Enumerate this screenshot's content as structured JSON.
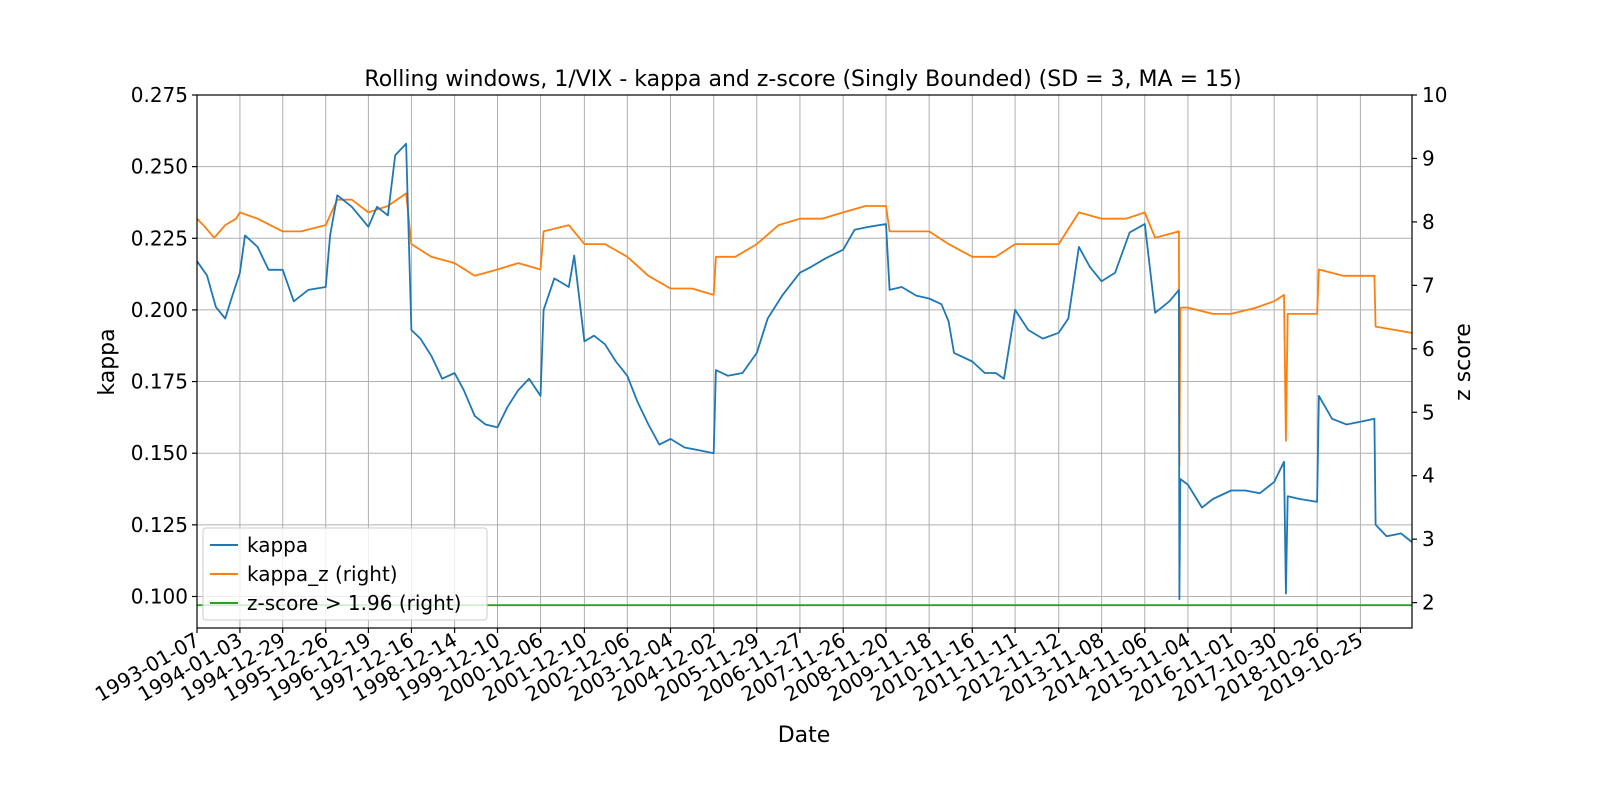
{
  "chart_data": {
    "type": "line",
    "title": "Rolling windows, 1/VIX - kappa and z-score (Singly Bounded) (SD = 3, MA = 15)",
    "xlabel": "Date",
    "ylabel": "kappa",
    "y2label": "z score",
    "xlim": [
      "1993-01-07",
      "2021-01-01"
    ],
    "ylim": [
      0.089,
      0.275
    ],
    "y2lim": [
      1.6,
      10.0
    ],
    "x_tick_labels": [
      "1993-01-07",
      "1994-01-03",
      "1994-12-29",
      "1995-12-26",
      "1996-12-19",
      "1997-12-16",
      "1998-12-14",
      "1999-12-10",
      "2000-12-06",
      "2001-12-10",
      "2002-12-06",
      "2003-12-04",
      "2004-12-02",
      "2005-11-29",
      "2006-11-27",
      "2007-11-26",
      "2008-11-20",
      "2009-11-18",
      "2010-11-16",
      "2011-11-11",
      "2012-11-12",
      "2013-11-08",
      "2014-11-06",
      "2015-11-04",
      "2016-11-01",
      "2017-10-30",
      "2018-10-26",
      "2019-10-25"
    ],
    "y_ticks": [
      "0.100",
      "0.125",
      "0.150",
      "0.175",
      "0.200",
      "0.225",
      "0.250",
      "0.275"
    ],
    "y2_ticks": [
      "2",
      "3",
      "4",
      "5",
      "6",
      "7",
      "8",
      "9",
      "10"
    ],
    "grid": true,
    "legend_position": "lower-left",
    "series": [
      {
        "name": "kappa",
        "axis": "left",
        "color": "#1f77b4",
        "points": [
          [
            "1993-01-07",
            0.217
          ],
          [
            "1993-04-01",
            0.212
          ],
          [
            "1993-06-15",
            0.201
          ],
          [
            "1993-09-01",
            0.197
          ],
          [
            "1993-11-01",
            0.205
          ],
          [
            "1994-01-03",
            0.213
          ],
          [
            "1994-02-15",
            0.226
          ],
          [
            "1994-06-01",
            0.222
          ],
          [
            "1994-09-01",
            0.214
          ],
          [
            "1994-12-29",
            0.214
          ],
          [
            "1995-04-01",
            0.203
          ],
          [
            "1995-08-01",
            0.207
          ],
          [
            "1995-12-26",
            0.208
          ],
          [
            "1996-02-01",
            0.226
          ],
          [
            "1996-04-01",
            0.24
          ],
          [
            "1996-08-01",
            0.236
          ],
          [
            "1996-12-19",
            0.229
          ],
          [
            "1997-03-01",
            0.236
          ],
          [
            "1997-06-01",
            0.233
          ],
          [
            "1997-08-01",
            0.254
          ],
          [
            "1997-11-01",
            0.258
          ],
          [
            "1997-12-16",
            0.193
          ],
          [
            "1998-03-01",
            0.19
          ],
          [
            "1998-06-01",
            0.184
          ],
          [
            "1998-09-01",
            0.176
          ],
          [
            "1998-12-14",
            0.178
          ],
          [
            "1999-03-01",
            0.172
          ],
          [
            "1999-06-01",
            0.163
          ],
          [
            "1999-09-01",
            0.16
          ],
          [
            "1999-12-10",
            0.159
          ],
          [
            "2000-03-01",
            0.166
          ],
          [
            "2000-06-01",
            0.172
          ],
          [
            "2000-09-01",
            0.176
          ],
          [
            "2000-12-06",
            0.17
          ],
          [
            "2001-01-01",
            0.2
          ],
          [
            "2001-04-01",
            0.211
          ],
          [
            "2001-08-01",
            0.208
          ],
          [
            "2001-09-15",
            0.219
          ],
          [
            "2001-12-10",
            0.189
          ],
          [
            "2002-03-01",
            0.191
          ],
          [
            "2002-06-01",
            0.188
          ],
          [
            "2002-09-01",
            0.182
          ],
          [
            "2002-12-06",
            0.177
          ],
          [
            "2003-03-01",
            0.168
          ],
          [
            "2003-06-01",
            0.16
          ],
          [
            "2003-09-01",
            0.153
          ],
          [
            "2003-12-04",
            0.155
          ],
          [
            "2004-04-01",
            0.152
          ],
          [
            "2004-08-01",
            0.151
          ],
          [
            "2004-12-02",
            0.15
          ],
          [
            "2004-12-20",
            0.179
          ],
          [
            "2005-04-01",
            0.177
          ],
          [
            "2005-08-01",
            0.178
          ],
          [
            "2005-11-29",
            0.185
          ],
          [
            "2006-03-01",
            0.197
          ],
          [
            "2006-07-01",
            0.205
          ],
          [
            "2006-11-27",
            0.213
          ],
          [
            "2007-03-01",
            0.215
          ],
          [
            "2007-07-01",
            0.218
          ],
          [
            "2007-11-26",
            0.221
          ],
          [
            "2008-03-01",
            0.228
          ],
          [
            "2008-07-01",
            0.229
          ],
          [
            "2008-11-20",
            0.23
          ],
          [
            "2008-12-20",
            0.207
          ],
          [
            "2009-04-01",
            0.208
          ],
          [
            "2009-08-01",
            0.205
          ],
          [
            "2009-11-18",
            0.204
          ],
          [
            "2010-03-01",
            0.202
          ],
          [
            "2010-05-01",
            0.196
          ],
          [
            "2010-06-15",
            0.185
          ],
          [
            "2010-11-16",
            0.182
          ],
          [
            "2011-03-01",
            0.178
          ],
          [
            "2011-06-01",
            0.178
          ],
          [
            "2011-08-10",
            0.176
          ],
          [
            "2011-11-11",
            0.2
          ],
          [
            "2012-03-01",
            0.193
          ],
          [
            "2012-07-01",
            0.19
          ],
          [
            "2012-11-12",
            0.192
          ],
          [
            "2013-02-01",
            0.197
          ],
          [
            "2013-05-01",
            0.222
          ],
          [
            "2013-08-01",
            0.215
          ],
          [
            "2013-11-08",
            0.21
          ],
          [
            "2014-03-01",
            0.213
          ],
          [
            "2014-07-01",
            0.227
          ],
          [
            "2014-11-06",
            0.23
          ],
          [
            "2015-02-01",
            0.199
          ],
          [
            "2015-06-01",
            0.203
          ],
          [
            "2015-08-20",
            0.207
          ],
          [
            "2015-08-24",
            0.099
          ],
          [
            "2015-09-01",
            0.141
          ],
          [
            "2015-11-04",
            0.139
          ],
          [
            "2016-03-01",
            0.131
          ],
          [
            "2016-06-01",
            0.134
          ],
          [
            "2016-11-01",
            0.137
          ],
          [
            "2017-03-01",
            0.137
          ],
          [
            "2017-07-01",
            0.136
          ],
          [
            "2017-10-30",
            0.14
          ],
          [
            "2018-01-20",
            0.147
          ],
          [
            "2018-02-05",
            0.101
          ],
          [
            "2018-02-20",
            0.135
          ],
          [
            "2018-06-01",
            0.134
          ],
          [
            "2018-10-26",
            0.133
          ],
          [
            "2018-11-10",
            0.17
          ],
          [
            "2019-03-01",
            0.162
          ],
          [
            "2019-07-01",
            0.16
          ],
          [
            "2019-10-25",
            0.161
          ],
          [
            "2020-02-20",
            0.162
          ],
          [
            "2020-03-01",
            0.125
          ],
          [
            "2020-06-01",
            0.121
          ],
          [
            "2020-10-01",
            0.122
          ],
          [
            "2020-12-30",
            0.119
          ]
        ]
      },
      {
        "name": "kappa_z (right)",
        "axis": "right",
        "color": "#ff7f0e",
        "points": [
          [
            "1993-01-07",
            8.05
          ],
          [
            "1993-03-01",
            7.95
          ],
          [
            "1993-06-01",
            7.75
          ],
          [
            "1993-09-01",
            7.95
          ],
          [
            "1993-12-01",
            8.05
          ],
          [
            "1994-01-03",
            8.15
          ],
          [
            "1994-06-01",
            8.05
          ],
          [
            "1994-12-29",
            7.85
          ],
          [
            "1995-06-01",
            7.85
          ],
          [
            "1995-12-26",
            7.95
          ],
          [
            "1996-04-01",
            8.35
          ],
          [
            "1996-08-01",
            8.35
          ],
          [
            "1996-12-19",
            8.15
          ],
          [
            "1997-06-01",
            8.25
          ],
          [
            "1997-11-01",
            8.45
          ],
          [
            "1997-12-16",
            7.65
          ],
          [
            "1998-06-01",
            7.45
          ],
          [
            "1998-12-14",
            7.35
          ],
          [
            "1999-06-01",
            7.15
          ],
          [
            "1999-12-10",
            7.25
          ],
          [
            "2000-06-01",
            7.35
          ],
          [
            "2000-12-06",
            7.25
          ],
          [
            "2001-01-01",
            7.85
          ],
          [
            "2001-08-01",
            7.95
          ],
          [
            "2001-12-10",
            7.65
          ],
          [
            "2002-06-01",
            7.65
          ],
          [
            "2002-12-06",
            7.45
          ],
          [
            "2003-06-01",
            7.15
          ],
          [
            "2003-12-04",
            6.95
          ],
          [
            "2004-06-01",
            6.95
          ],
          [
            "2004-12-02",
            6.85
          ],
          [
            "2004-12-20",
            7.45
          ],
          [
            "2005-06-01",
            7.45
          ],
          [
            "2005-11-29",
            7.65
          ],
          [
            "2006-06-01",
            7.95
          ],
          [
            "2006-11-27",
            8.05
          ],
          [
            "2007-06-01",
            8.05
          ],
          [
            "2007-11-26",
            8.15
          ],
          [
            "2008-06-01",
            8.25
          ],
          [
            "2008-11-20",
            8.25
          ],
          [
            "2008-12-20",
            7.85
          ],
          [
            "2009-06-01",
            7.85
          ],
          [
            "2009-11-18",
            7.85
          ],
          [
            "2010-05-01",
            7.65
          ],
          [
            "2010-11-16",
            7.45
          ],
          [
            "2011-06-01",
            7.45
          ],
          [
            "2011-11-11",
            7.65
          ],
          [
            "2012-06-01",
            7.65
          ],
          [
            "2012-11-12",
            7.65
          ],
          [
            "2013-05-01",
            8.15
          ],
          [
            "2013-11-08",
            8.05
          ],
          [
            "2014-06-01",
            8.05
          ],
          [
            "2014-11-06",
            8.15
          ],
          [
            "2015-02-01",
            7.75
          ],
          [
            "2015-08-20",
            7.85
          ],
          [
            "2015-08-24",
            4.15
          ],
          [
            "2015-09-01",
            6.65
          ],
          [
            "2015-11-04",
            6.65
          ],
          [
            "2016-06-01",
            6.55
          ],
          [
            "2016-11-01",
            6.55
          ],
          [
            "2017-06-01",
            6.65
          ],
          [
            "2017-10-30",
            6.75
          ],
          [
            "2018-01-20",
            6.85
          ],
          [
            "2018-02-05",
            4.55
          ],
          [
            "2018-02-20",
            6.55
          ],
          [
            "2018-10-26",
            6.55
          ],
          [
            "2018-11-10",
            7.25
          ],
          [
            "2019-06-01",
            7.15
          ],
          [
            "2019-10-25",
            7.15
          ],
          [
            "2020-02-20",
            7.15
          ],
          [
            "2020-03-01",
            6.35
          ],
          [
            "2020-12-30",
            6.25
          ]
        ]
      },
      {
        "name": "z-score > 1.96 (right)",
        "axis": "right",
        "color": "#2ca02c",
        "points": [
          [
            "1993-01-07",
            1.96
          ],
          [
            "2020-12-30",
            1.96
          ]
        ]
      }
    ]
  }
}
